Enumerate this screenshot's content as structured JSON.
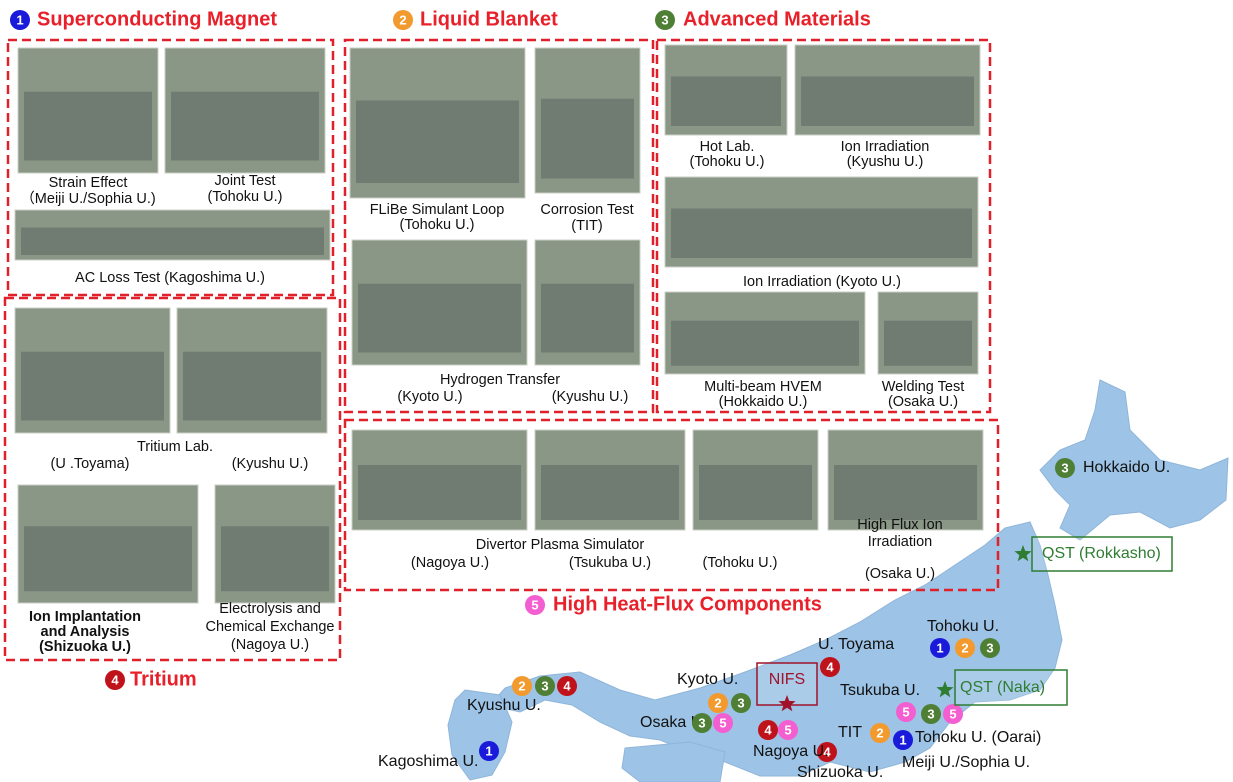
{
  "sections": [
    {
      "number": "1",
      "title": "Superconducting Magnet",
      "color": "#1a1adb",
      "captions": [
        "Strain Effect",
        "（Meiji U./Sophia U.)",
        "Joint Test",
        "(Tohoku U.)",
        "AC Loss Test (Kagoshima U.)"
      ]
    },
    {
      "number": "2",
      "title": "Liquid Blanket",
      "color": "#f29a2e",
      "captions": [
        "FLiBe Simulant Loop",
        "(Tohoku U.)",
        "Corrosion Test",
        "(TIT)",
        "Hydrogen Transfer",
        "(Kyoto U.)",
        "(Kyushu U.)"
      ]
    },
    {
      "number": "3",
      "title": "Advanced Materials",
      "color": "#4f7f35",
      "captions": [
        "Hot Lab.",
        "(Tohoku U.)",
        "Ion Irradiation",
        "(Kyushu U.)",
        "Ion Irradiation (Kyoto U.)",
        "Multi-beam HVEM",
        "(Hokkaido U.)",
        "Welding Test",
        "(Osaka U.)"
      ]
    },
    {
      "number": "4",
      "title": "Tritium",
      "color": "#c0121a",
      "captions": [
        "Tritium Lab.",
        "(U .Toyama)",
        "(Kyushu U.)",
        "Ion Implantation",
        "and Analysis",
        "(Shizuoka U.)",
        "Electrolysis and",
        "Chemical Exchange",
        "(Nagoya U.)"
      ]
    },
    {
      "number": "5",
      "title": "High Heat-Flux Components",
      "color": "#f35fd0",
      "captions": [
        "Divertor Plasma Simulator",
        "(Nagoya U.)",
        "(Tsukuba U.)",
        "(Tohoku U.)",
        "High Flux Ion",
        "Irradiation",
        "(Osaka U.)"
      ]
    }
  ],
  "map": {
    "sites": [
      {
        "name": "Hokkaido U.",
        "badges": [
          "3"
        ]
      },
      {
        "name": "Tohoku U.",
        "badges": [
          "1",
          "2",
          "3"
        ]
      },
      {
        "name": "U. Toyama",
        "badges": [
          "4"
        ]
      },
      {
        "name": "Kyoto U.",
        "badges": [
          "2",
          "3"
        ]
      },
      {
        "name": "Tsukuba U.",
        "badges": [
          "5",
          "3",
          "5"
        ]
      },
      {
        "name": "TIT",
        "badges": [
          "2"
        ]
      },
      {
        "name": "Tohoku U. (Oarai)",
        "badges": []
      },
      {
        "name": "Meiji U./Sophia U.",
        "badges": [
          "1"
        ]
      },
      {
        "name": "Shizuoka U.",
        "badges": [
          "4"
        ]
      },
      {
        "name": "Nagoya U.",
        "badges": [
          "4",
          "5"
        ]
      },
      {
        "name": "Osaka U.",
        "badges": [
          "3",
          "5"
        ]
      },
      {
        "name": "Kyushu U.",
        "badges": [
          "2",
          "3",
          "4"
        ]
      },
      {
        "name": "Kagoshima U.",
        "badges": [
          "1"
        ]
      }
    ],
    "facilities": [
      "QST (Rokkasho)",
      "QST (Naka)",
      "NIFS"
    ]
  }
}
